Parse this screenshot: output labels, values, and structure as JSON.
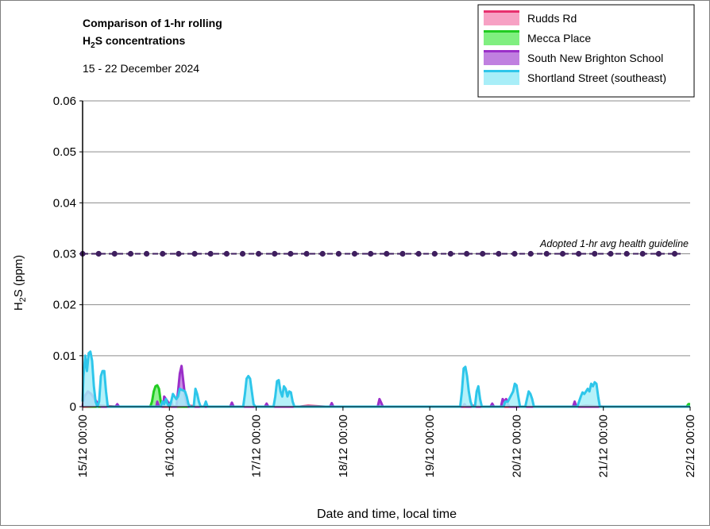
{
  "chart_data": {
    "type": "area",
    "title_line1": "Comparison of 1-hr rolling",
    "title_line2_pre": "H",
    "title_line2_sub": "2",
    "title_line2_post": "S concentrations",
    "subtitle": "15 - 22 December 2024",
    "ylabel_pre": "H",
    "ylabel_sub": "2",
    "ylabel_post": "S (ppm)",
    "xlabel": "Date and time, local time",
    "ylim": [
      0,
      0.06
    ],
    "xlim_days": [
      0,
      7
    ],
    "y_ticks": [
      "0",
      "0.01",
      "0.02",
      "0.03",
      "0.04",
      "0.05",
      "0.06"
    ],
    "x_ticks": [
      "15/12 00:00",
      "16/12 00:00",
      "17/12 00:00",
      "18/12 00:00",
      "19/12 00:00",
      "20/12 00:00",
      "21/12 00:00",
      "22/12 00:00"
    ],
    "grid": true,
    "legend_position": "top-right",
    "guideline": {
      "label": "Adopted 1-hr avg health guideline",
      "value": 0.03,
      "color": "#3f1f5f"
    },
    "series": [
      {
        "name": "Rudds Rd",
        "fill": "#f7a1c4",
        "stroke": "#e8306e",
        "points": [
          [
            0,
            0
          ],
          [
            0.2,
            0.0002
          ],
          [
            0.4,
            0
          ],
          [
            1.0,
            0
          ],
          [
            1.2,
            0.0002
          ],
          [
            1.4,
            0
          ],
          [
            2.5,
            0
          ],
          [
            2.6,
            0.0002
          ],
          [
            2.8,
            0
          ],
          [
            4.4,
            0
          ],
          [
            4.5,
            0.0002
          ],
          [
            4.6,
            0
          ],
          [
            5.7,
            0
          ],
          [
            5.8,
            0.0002
          ],
          [
            6.0,
            0
          ],
          [
            7,
            0
          ]
        ]
      },
      {
        "name": "Mecca Place",
        "fill": "#80ef80",
        "stroke": "#22cc22",
        "points": [
          [
            0,
            0
          ],
          [
            0.78,
            0
          ],
          [
            0.8,
            0.001
          ],
          [
            0.82,
            0.003
          ],
          [
            0.84,
            0.004
          ],
          [
            0.86,
            0.0042
          ],
          [
            0.88,
            0.0035
          ],
          [
            0.9,
            0.001
          ],
          [
            0.92,
            0
          ],
          [
            6.96,
            0
          ],
          [
            6.98,
            0.0005
          ],
          [
            7,
            0.0005
          ]
        ]
      },
      {
        "name": "South New Brighton School",
        "fill": "#c080e0",
        "stroke": "#9b2fc9",
        "points": [
          [
            0,
            0
          ],
          [
            0.02,
            0.002
          ],
          [
            0.06,
            0.003
          ],
          [
            0.1,
            0.0025
          ],
          [
            0.14,
            0.0015
          ],
          [
            0.18,
            0.0005
          ],
          [
            0.22,
            0
          ],
          [
            0.38,
            0
          ],
          [
            0.4,
            0.0005
          ],
          [
            0.42,
            0
          ],
          [
            0.85,
            0
          ],
          [
            0.86,
            0.001
          ],
          [
            0.88,
            0
          ],
          [
            0.93,
            0
          ],
          [
            0.94,
            0.002
          ],
          [
            0.96,
            0.0015
          ],
          [
            0.98,
            0.001
          ],
          [
            1.0,
            0.0005
          ],
          [
            1.02,
            0.001
          ],
          [
            1.04,
            0
          ],
          [
            1.08,
            0
          ],
          [
            1.1,
            0.003
          ],
          [
            1.12,
            0.0065
          ],
          [
            1.14,
            0.008
          ],
          [
            1.16,
            0.005
          ],
          [
            1.18,
            0.002
          ],
          [
            1.2,
            0.0005
          ],
          [
            1.22,
            0
          ],
          [
            1.7,
            0
          ],
          [
            1.72,
            0.0008
          ],
          [
            1.74,
            0
          ],
          [
            2.1,
            0
          ],
          [
            2.12,
            0.0006
          ],
          [
            2.14,
            0
          ],
          [
            2.85,
            0
          ],
          [
            2.87,
            0.0007
          ],
          [
            2.89,
            0
          ],
          [
            3.4,
            0
          ],
          [
            3.42,
            0.0015
          ],
          [
            3.44,
            0.0008
          ],
          [
            3.46,
            0
          ],
          [
            4.38,
            0
          ],
          [
            4.4,
            0.0005
          ],
          [
            4.42,
            0
          ],
          [
            4.7,
            0
          ],
          [
            4.72,
            0.0006
          ],
          [
            4.74,
            0
          ],
          [
            4.82,
            0
          ],
          [
            4.84,
            0.0015
          ],
          [
            4.86,
            0.001
          ],
          [
            4.88,
            0.0015
          ],
          [
            4.9,
            0.0005
          ],
          [
            4.92,
            0
          ],
          [
            5.65,
            0
          ],
          [
            5.67,
            0.001
          ],
          [
            5.69,
            0
          ],
          [
            7,
            0
          ]
        ]
      },
      {
        "name": "Shortland Street (southeast)",
        "fill": "#a8eef8",
        "stroke": "#2ec6ea",
        "points": [
          [
            0,
            0.001
          ],
          [
            0.01,
            0.006
          ],
          [
            0.03,
            0.01
          ],
          [
            0.05,
            0.007
          ],
          [
            0.07,
            0.0105
          ],
          [
            0.09,
            0.0108
          ],
          [
            0.11,
            0.009
          ],
          [
            0.13,
            0.004
          ],
          [
            0.15,
            0.001
          ],
          [
            0.17,
            0
          ],
          [
            0.19,
            0.001
          ],
          [
            0.21,
            0.006
          ],
          [
            0.23,
            0.007
          ],
          [
            0.25,
            0.007
          ],
          [
            0.27,
            0.003
          ],
          [
            0.29,
            0
          ],
          [
            0.9,
            0
          ],
          [
            0.92,
            0.001
          ],
          [
            0.94,
            0.0005
          ],
          [
            0.96,
            0.0015
          ],
          [
            0.98,
            0.0005
          ],
          [
            1.0,
            0
          ],
          [
            1.02,
            0.001
          ],
          [
            1.04,
            0.0025
          ],
          [
            1.06,
            0.002
          ],
          [
            1.08,
            0.0015
          ],
          [
            1.1,
            0.002
          ],
          [
            1.12,
            0.0035
          ],
          [
            1.14,
            0.0033
          ],
          [
            1.16,
            0.0032
          ],
          [
            1.18,
            0.003
          ],
          [
            1.2,
            0.002
          ],
          [
            1.22,
            0.0005
          ],
          [
            1.24,
            0
          ],
          [
            1.28,
            0
          ],
          [
            1.3,
            0.0035
          ],
          [
            1.32,
            0.0025
          ],
          [
            1.34,
            0.001
          ],
          [
            1.36,
            0
          ],
          [
            1.4,
            0
          ],
          [
            1.42,
            0.001
          ],
          [
            1.44,
            0
          ],
          [
            1.85,
            0
          ],
          [
            1.87,
            0.0025
          ],
          [
            1.89,
            0.0055
          ],
          [
            1.91,
            0.006
          ],
          [
            1.93,
            0.0055
          ],
          [
            1.95,
            0.003
          ],
          [
            1.97,
            0.0005
          ],
          [
            1.99,
            0
          ],
          [
            2.2,
            0
          ],
          [
            2.22,
            0.002
          ],
          [
            2.24,
            0.005
          ],
          [
            2.26,
            0.0052
          ],
          [
            2.28,
            0.003
          ],
          [
            2.3,
            0.002
          ],
          [
            2.32,
            0.004
          ],
          [
            2.34,
            0.0035
          ],
          [
            2.36,
            0.002
          ],
          [
            2.38,
            0.003
          ],
          [
            2.4,
            0.0028
          ],
          [
            2.42,
            0.001
          ],
          [
            2.44,
            0
          ],
          [
            4.35,
            0
          ],
          [
            4.37,
            0.003
          ],
          [
            4.39,
            0.0075
          ],
          [
            4.41,
            0.0078
          ],
          [
            4.43,
            0.006
          ],
          [
            4.45,
            0.003
          ],
          [
            4.47,
            0.001
          ],
          [
            4.49,
            0
          ],
          [
            4.52,
            0
          ],
          [
            4.54,
            0.003
          ],
          [
            4.56,
            0.004
          ],
          [
            4.58,
            0.0015
          ],
          [
            4.6,
            0
          ],
          [
            4.85,
            0
          ],
          [
            4.87,
            0.001
          ],
          [
            4.9,
            0.001
          ],
          [
            4.93,
            0.002
          ],
          [
            4.96,
            0.003
          ],
          [
            4.98,
            0.0045
          ],
          [
            5.0,
            0.0042
          ],
          [
            5.02,
            0.002
          ],
          [
            5.04,
            0
          ],
          [
            5.1,
            0
          ],
          [
            5.12,
            0.0015
          ],
          [
            5.14,
            0.003
          ],
          [
            5.16,
            0.0025
          ],
          [
            5.18,
            0.0015
          ],
          [
            5.2,
            0
          ],
          [
            5.7,
            0
          ],
          [
            5.72,
            0.001
          ],
          [
            5.74,
            0.002
          ],
          [
            5.76,
            0.0028
          ],
          [
            5.78,
            0.0025
          ],
          [
            5.8,
            0.003
          ],
          [
            5.82,
            0.0035
          ],
          [
            5.84,
            0.003
          ],
          [
            5.86,
            0.0045
          ],
          [
            5.88,
            0.004
          ],
          [
            5.9,
            0.0048
          ],
          [
            5.92,
            0.0045
          ],
          [
            5.94,
            0.002
          ],
          [
            5.96,
            0
          ],
          [
            7,
            0
          ]
        ]
      }
    ]
  }
}
